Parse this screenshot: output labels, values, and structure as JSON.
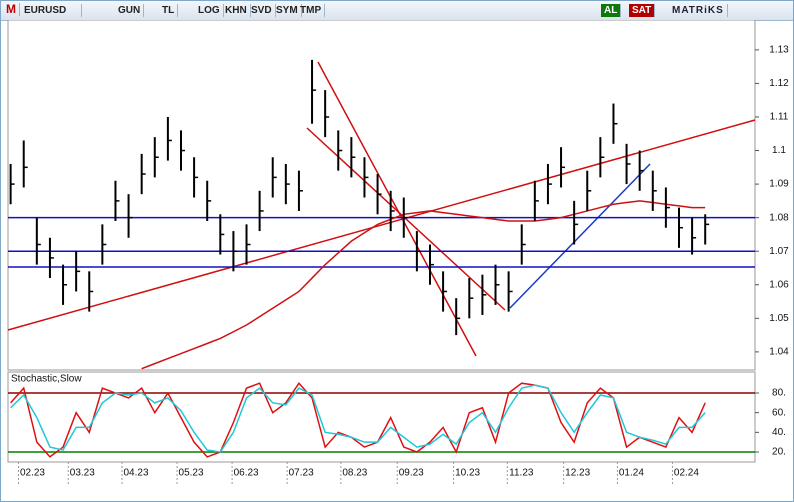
{
  "toolbar": {
    "logo": "M",
    "symbol": "EURUSD",
    "buttons": [
      "GUN",
      "TL",
      "LOG",
      "KHN",
      "SVD",
      "SYM",
      "TMP"
    ],
    "buy": "AL",
    "sell": "SAT",
    "brand": "MATRiKS"
  },
  "chart_data": [
    {
      "type": "ohlc",
      "xlim": [
        -0.2,
        56.8
      ],
      "ylim": [
        1.0346,
        1.1389
      ],
      "yticks": [
        1.04,
        1.05,
        1.06,
        1.07,
        1.08,
        1.09,
        1.1,
        1.11,
        1.12,
        1.13
      ],
      "color": "#000000",
      "high": [
        1.096,
        1.103,
        1.08,
        1.074,
        1.066,
        1.07,
        1.064,
        1.078,
        1.091,
        1.087,
        1.099,
        1.104,
        1.11,
        1.106,
        1.098,
        1.091,
        1.081,
        1.076,
        1.078,
        1.088,
        1.098,
        1.096,
        1.094,
        1.127,
        1.118,
        1.106,
        1.104,
        1.098,
        1.093,
        1.088,
        1.086,
        1.076,
        1.072,
        1.064,
        1.056,
        1.062,
        1.063,
        1.066,
        1.064,
        1.078,
        1.091,
        1.096,
        1.101,
        1.085,
        1.094,
        1.104,
        1.114,
        1.102,
        1.1,
        1.094,
        1.089,
        1.083,
        1.08,
        1.081
      ],
      "low": [
        1.084,
        1.089,
        1.066,
        1.062,
        1.054,
        1.058,
        1.052,
        1.066,
        1.079,
        1.074,
        1.087,
        1.092,
        1.097,
        1.094,
        1.086,
        1.079,
        1.069,
        1.064,
        1.066,
        1.076,
        1.086,
        1.084,
        1.082,
        1.108,
        1.104,
        1.094,
        1.092,
        1.086,
        1.081,
        1.076,
        1.074,
        1.064,
        1.06,
        1.052,
        1.045,
        1.05,
        1.051,
        1.054,
        1.052,
        1.066,
        1.079,
        1.084,
        1.089,
        1.072,
        1.082,
        1.092,
        1.102,
        1.09,
        1.088,
        1.082,
        1.077,
        1.071,
        1.069,
        1.072
      ],
      "close": [
        1.09,
        1.095,
        1.072,
        1.068,
        1.06,
        1.064,
        1.058,
        1.072,
        1.085,
        1.08,
        1.093,
        1.098,
        1.103,
        1.1,
        1.092,
        1.085,
        1.075,
        1.07,
        1.072,
        1.082,
        1.092,
        1.09,
        1.088,
        1.118,
        1.11,
        1.1,
        1.098,
        1.092,
        1.087,
        1.082,
        1.08,
        1.07,
        1.066,
        1.058,
        1.05,
        1.056,
        1.057,
        1.06,
        1.058,
        1.072,
        1.085,
        1.09,
        1.095,
        1.078,
        1.088,
        1.098,
        1.108,
        1.096,
        1.094,
        1.088,
        1.083,
        1.077,
        1.074,
        1.078
      ],
      "series": [
        {
          "color": "#d01010",
          "values": [
            null,
            null,
            null,
            null,
            null,
            null,
            null,
            null,
            null,
            null,
            1.035,
            1.0365,
            1.038,
            1.0395,
            1.041,
            1.0425,
            1.044,
            1.046,
            1.048,
            1.0505,
            1.053,
            1.0555,
            1.058,
            1.062,
            1.066,
            1.0695,
            1.073,
            1.0755,
            1.078,
            1.0795,
            1.081,
            1.0815,
            1.082,
            1.0815,
            1.081,
            1.0805,
            1.08,
            1.0795,
            1.079,
            1.079,
            1.079,
            1.0795,
            1.08,
            1.081,
            1.082,
            1.083,
            1.084,
            1.0845,
            1.085,
            1.0845,
            1.084,
            1.0835,
            1.083,
            1.083
          ]
        }
      ],
      "levels": [
        {
          "value": 1.08,
          "color": "#1010c0"
        },
        {
          "value": 1.07,
          "color": "#1010c0"
        },
        {
          "value": 1.0653,
          "color": "#1010c0"
        }
      ]
    },
    {
      "type": "line",
      "title": "Stochastic,Slow",
      "xlim": [
        -0.2,
        56.8
      ],
      "ylim": [
        9.8,
        101.4
      ],
      "yticks": [
        {
          "value": 20,
          "label": "20."
        },
        {
          "value": 40,
          "label": "40."
        },
        {
          "value": 60,
          "label": "60."
        },
        {
          "value": 80,
          "label": "80."
        }
      ],
      "xticks": [
        {
          "value": 0.6,
          "label": "02.23"
        },
        {
          "value": 4.4,
          "label": "03.23"
        },
        {
          "value": 8.5,
          "label": "04.23"
        },
        {
          "value": 12.7,
          "label": "05.23"
        },
        {
          "value": 16.9,
          "label": "06.23"
        },
        {
          "value": 21.1,
          "label": "07.23"
        },
        {
          "value": 25.2,
          "label": "08.23"
        },
        {
          "value": 29.5,
          "label": "09.23"
        },
        {
          "value": 33.8,
          "label": "10.23"
        },
        {
          "value": 37.9,
          "label": "11.23"
        },
        {
          "value": 42.2,
          "label": "12.23"
        },
        {
          "value": 46.3,
          "label": "01.24"
        },
        {
          "value": 50.5,
          "label": "02.24"
        }
      ],
      "series": [
        {
          "color": "#e01010",
          "values": [
            70,
            85,
            30,
            15,
            25,
            60,
            40,
            85,
            80,
            75,
            85,
            60,
            80,
            55,
            30,
            15,
            20,
            50,
            85,
            90,
            60,
            70,
            90,
            75,
            25,
            40,
            35,
            25,
            30,
            55,
            25,
            20,
            30,
            45,
            20,
            60,
            65,
            30,
            80,
            90,
            88,
            85,
            50,
            30,
            70,
            85,
            75,
            25,
            35,
            30,
            25,
            55,
            40,
            70
          ]
        },
        {
          "color": "#20c8d8",
          "values": [
            65,
            78,
            55,
            25,
            22,
            45,
            45,
            70,
            80,
            78,
            80,
            70,
            75,
            62,
            40,
            22,
            20,
            40,
            75,
            85,
            70,
            68,
            85,
            78,
            40,
            38,
            35,
            30,
            30,
            45,
            35,
            25,
            28,
            38,
            28,
            50,
            60,
            40,
            65,
            85,
            88,
            85,
            60,
            40,
            60,
            78,
            75,
            40,
            35,
            32,
            28,
            45,
            45,
            60
          ]
        }
      ],
      "levels": [
        {
          "value": 80,
          "color": "#8b0000"
        },
        {
          "value": 20,
          "color": "#008000"
        }
      ]
    }
  ]
}
